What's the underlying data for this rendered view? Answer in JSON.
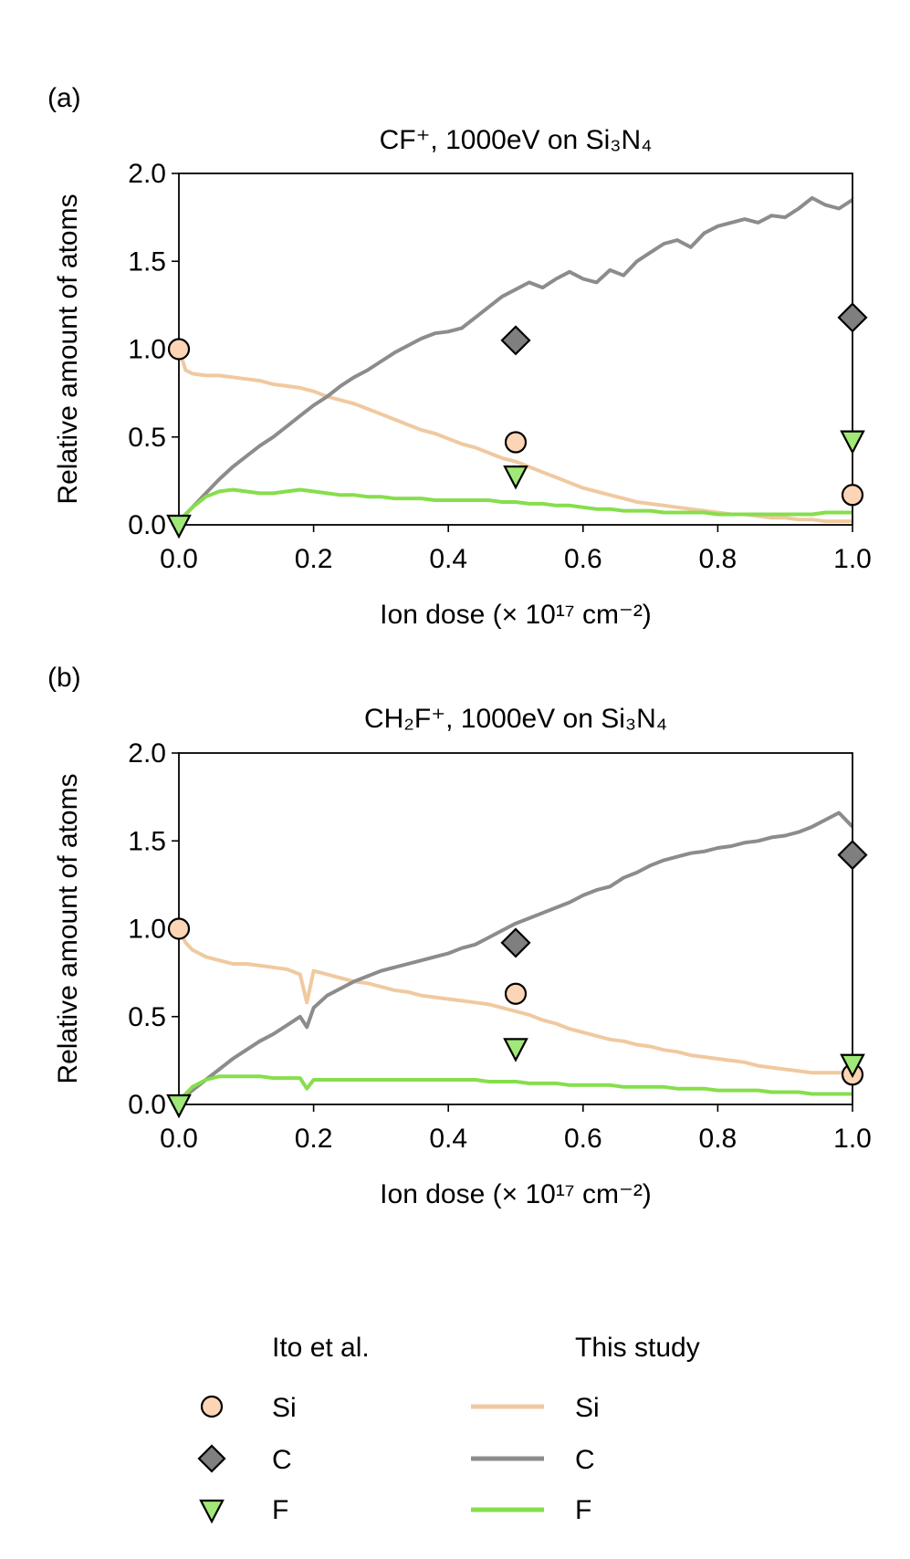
{
  "colors": {
    "si": "#f0c9a0",
    "c": "#8c8c8c",
    "f": "#86de4c",
    "si_marker": "#fbd5b5",
    "c_marker": "#7f7f7f",
    "f_marker": "#a0e878"
  },
  "legend": {
    "ito_heading": "Ito et al.",
    "study_heading": "This study",
    "ito_items": [
      "Si",
      "C",
      "F"
    ],
    "study_items": [
      "Si",
      "C",
      "F"
    ]
  },
  "chart_data": [
    {
      "type": "line",
      "panel_label": "(a)",
      "title": "CF⁺, 1000eV on Si₃N₄",
      "xlabel": "Ion dose (× 10¹⁷ cm⁻²)",
      "ylabel": "Relative amount of atoms",
      "xlim": [
        0.0,
        1.0
      ],
      "ylim": [
        0.0,
        2.0
      ],
      "xticks": [
        "0.0",
        "0.2",
        "0.4",
        "0.6",
        "0.8",
        "1.0"
      ],
      "yticks": [
        "0.0",
        "0.5",
        "1.0",
        "1.5",
        "2.0"
      ],
      "series": [
        {
          "name": "Si",
          "x": [
            0.0,
            0.01,
            0.02,
            0.04,
            0.06,
            0.08,
            0.1,
            0.12,
            0.14,
            0.16,
            0.18,
            0.2,
            0.22,
            0.24,
            0.26,
            0.28,
            0.3,
            0.32,
            0.34,
            0.36,
            0.38,
            0.4,
            0.42,
            0.44,
            0.46,
            0.48,
            0.5,
            0.52,
            0.54,
            0.56,
            0.58,
            0.6,
            0.62,
            0.64,
            0.66,
            0.68,
            0.7,
            0.72,
            0.74,
            0.76,
            0.78,
            0.8,
            0.82,
            0.84,
            0.86,
            0.88,
            0.9,
            0.92,
            0.94,
            0.96,
            0.98,
            1.0
          ],
          "y": [
            1.0,
            0.88,
            0.86,
            0.85,
            0.85,
            0.84,
            0.83,
            0.82,
            0.8,
            0.79,
            0.78,
            0.76,
            0.73,
            0.71,
            0.69,
            0.66,
            0.63,
            0.6,
            0.57,
            0.54,
            0.52,
            0.49,
            0.46,
            0.44,
            0.41,
            0.38,
            0.36,
            0.33,
            0.3,
            0.27,
            0.24,
            0.21,
            0.19,
            0.17,
            0.15,
            0.13,
            0.12,
            0.11,
            0.1,
            0.09,
            0.08,
            0.07,
            0.06,
            0.06,
            0.05,
            0.04,
            0.04,
            0.03,
            0.03,
            0.02,
            0.02,
            0.02
          ]
        },
        {
          "name": "C",
          "x": [
            0.0,
            0.02,
            0.04,
            0.06,
            0.08,
            0.1,
            0.12,
            0.14,
            0.16,
            0.18,
            0.2,
            0.22,
            0.24,
            0.26,
            0.28,
            0.3,
            0.32,
            0.34,
            0.36,
            0.38,
            0.4,
            0.42,
            0.44,
            0.46,
            0.48,
            0.5,
            0.52,
            0.54,
            0.56,
            0.58,
            0.6,
            0.62,
            0.64,
            0.66,
            0.68,
            0.7,
            0.72,
            0.74,
            0.76,
            0.78,
            0.8,
            0.82,
            0.84,
            0.86,
            0.88,
            0.9,
            0.92,
            0.94,
            0.96,
            0.98,
            1.0
          ],
          "y": [
            0.02,
            0.1,
            0.18,
            0.26,
            0.33,
            0.39,
            0.45,
            0.5,
            0.56,
            0.62,
            0.68,
            0.73,
            0.79,
            0.84,
            0.88,
            0.93,
            0.98,
            1.02,
            1.06,
            1.09,
            1.1,
            1.12,
            1.18,
            1.24,
            1.3,
            1.34,
            1.38,
            1.35,
            1.4,
            1.44,
            1.4,
            1.38,
            1.45,
            1.42,
            1.5,
            1.55,
            1.6,
            1.62,
            1.58,
            1.66,
            1.7,
            1.72,
            1.74,
            1.72,
            1.76,
            1.75,
            1.8,
            1.86,
            1.82,
            1.8,
            1.85
          ]
        },
        {
          "name": "F",
          "x": [
            0.0,
            0.02,
            0.04,
            0.06,
            0.08,
            0.1,
            0.12,
            0.14,
            0.16,
            0.18,
            0.2,
            0.22,
            0.24,
            0.26,
            0.28,
            0.3,
            0.32,
            0.34,
            0.36,
            0.38,
            0.4,
            0.42,
            0.44,
            0.46,
            0.48,
            0.5,
            0.52,
            0.54,
            0.56,
            0.58,
            0.6,
            0.62,
            0.64,
            0.66,
            0.68,
            0.7,
            0.72,
            0.74,
            0.76,
            0.78,
            0.8,
            0.82,
            0.84,
            0.86,
            0.88,
            0.9,
            0.92,
            0.94,
            0.96,
            0.98,
            1.0
          ],
          "y": [
            0.02,
            0.1,
            0.16,
            0.19,
            0.2,
            0.19,
            0.18,
            0.18,
            0.19,
            0.2,
            0.19,
            0.18,
            0.17,
            0.17,
            0.16,
            0.16,
            0.15,
            0.15,
            0.15,
            0.14,
            0.14,
            0.14,
            0.14,
            0.14,
            0.13,
            0.13,
            0.12,
            0.12,
            0.11,
            0.11,
            0.1,
            0.09,
            0.09,
            0.08,
            0.08,
            0.08,
            0.07,
            0.07,
            0.07,
            0.07,
            0.06,
            0.06,
            0.06,
            0.06,
            0.06,
            0.06,
            0.06,
            0.06,
            0.07,
            0.07,
            0.07
          ]
        }
      ],
      "reference_points": [
        {
          "name": "Si",
          "marker": "circle",
          "x": [
            0.0,
            0.5,
            1.0
          ],
          "y": [
            1.0,
            0.47,
            0.17
          ]
        },
        {
          "name": "C",
          "marker": "diamond",
          "x": [
            0.5,
            1.0
          ],
          "y": [
            1.05,
            1.18
          ]
        },
        {
          "name": "F",
          "marker": "triangle-down",
          "x": [
            0.0,
            0.5,
            1.0
          ],
          "y": [
            0.0,
            0.28,
            0.48
          ]
        }
      ]
    },
    {
      "type": "line",
      "panel_label": "(b)",
      "title": "CH₂F⁺, 1000eV on Si₃N₄",
      "xlabel": "Ion dose (× 10¹⁷ cm⁻²)",
      "ylabel": "Relative amount of atoms",
      "xlim": [
        0.0,
        1.0
      ],
      "ylim": [
        0.0,
        2.0
      ],
      "xticks": [
        "0.0",
        "0.2",
        "0.4",
        "0.6",
        "0.8",
        "1.0"
      ],
      "yticks": [
        "0.0",
        "0.5",
        "1.0",
        "1.5",
        "2.0"
      ],
      "series": [
        {
          "name": "Si",
          "x": [
            0.0,
            0.01,
            0.02,
            0.04,
            0.06,
            0.08,
            0.1,
            0.12,
            0.14,
            0.16,
            0.18,
            0.19,
            0.2,
            0.22,
            0.24,
            0.26,
            0.28,
            0.3,
            0.32,
            0.34,
            0.36,
            0.38,
            0.4,
            0.42,
            0.44,
            0.46,
            0.48,
            0.5,
            0.52,
            0.54,
            0.56,
            0.58,
            0.6,
            0.62,
            0.64,
            0.66,
            0.68,
            0.7,
            0.72,
            0.74,
            0.76,
            0.78,
            0.8,
            0.82,
            0.84,
            0.86,
            0.88,
            0.9,
            0.92,
            0.94,
            0.96,
            0.98,
            1.0
          ],
          "y": [
            1.0,
            0.92,
            0.88,
            0.84,
            0.82,
            0.8,
            0.8,
            0.79,
            0.78,
            0.77,
            0.74,
            0.58,
            0.76,
            0.74,
            0.72,
            0.7,
            0.69,
            0.67,
            0.65,
            0.64,
            0.62,
            0.61,
            0.6,
            0.59,
            0.58,
            0.57,
            0.55,
            0.53,
            0.51,
            0.48,
            0.46,
            0.43,
            0.41,
            0.39,
            0.37,
            0.36,
            0.34,
            0.33,
            0.31,
            0.3,
            0.28,
            0.27,
            0.26,
            0.25,
            0.24,
            0.22,
            0.21,
            0.2,
            0.19,
            0.18,
            0.18,
            0.18,
            0.18
          ]
        },
        {
          "name": "C",
          "x": [
            0.0,
            0.02,
            0.04,
            0.06,
            0.08,
            0.1,
            0.12,
            0.14,
            0.16,
            0.18,
            0.19,
            0.2,
            0.22,
            0.24,
            0.26,
            0.28,
            0.3,
            0.32,
            0.34,
            0.36,
            0.38,
            0.4,
            0.42,
            0.44,
            0.46,
            0.48,
            0.5,
            0.52,
            0.54,
            0.56,
            0.58,
            0.6,
            0.62,
            0.64,
            0.66,
            0.68,
            0.7,
            0.72,
            0.74,
            0.76,
            0.78,
            0.8,
            0.82,
            0.84,
            0.86,
            0.88,
            0.9,
            0.92,
            0.94,
            0.96,
            0.98,
            1.0
          ],
          "y": [
            0.02,
            0.08,
            0.14,
            0.2,
            0.26,
            0.31,
            0.36,
            0.4,
            0.45,
            0.5,
            0.44,
            0.55,
            0.62,
            0.66,
            0.7,
            0.73,
            0.76,
            0.78,
            0.8,
            0.82,
            0.84,
            0.86,
            0.89,
            0.91,
            0.95,
            0.99,
            1.03,
            1.06,
            1.09,
            1.12,
            1.15,
            1.19,
            1.22,
            1.24,
            1.29,
            1.32,
            1.36,
            1.39,
            1.41,
            1.43,
            1.44,
            1.46,
            1.47,
            1.49,
            1.5,
            1.52,
            1.53,
            1.55,
            1.58,
            1.62,
            1.66,
            1.58
          ]
        },
        {
          "name": "F",
          "x": [
            0.0,
            0.02,
            0.04,
            0.06,
            0.08,
            0.1,
            0.12,
            0.14,
            0.16,
            0.18,
            0.19,
            0.2,
            0.22,
            0.24,
            0.26,
            0.28,
            0.3,
            0.32,
            0.34,
            0.36,
            0.38,
            0.4,
            0.42,
            0.44,
            0.46,
            0.48,
            0.5,
            0.52,
            0.54,
            0.56,
            0.58,
            0.6,
            0.62,
            0.64,
            0.66,
            0.68,
            0.7,
            0.72,
            0.74,
            0.76,
            0.78,
            0.8,
            0.82,
            0.84,
            0.86,
            0.88,
            0.9,
            0.92,
            0.94,
            0.96,
            0.98,
            1.0
          ],
          "y": [
            0.02,
            0.1,
            0.14,
            0.16,
            0.16,
            0.16,
            0.16,
            0.15,
            0.15,
            0.15,
            0.09,
            0.14,
            0.14,
            0.14,
            0.14,
            0.14,
            0.14,
            0.14,
            0.14,
            0.14,
            0.14,
            0.14,
            0.14,
            0.14,
            0.13,
            0.13,
            0.13,
            0.12,
            0.12,
            0.12,
            0.11,
            0.11,
            0.11,
            0.11,
            0.1,
            0.1,
            0.1,
            0.1,
            0.09,
            0.09,
            0.09,
            0.08,
            0.08,
            0.08,
            0.08,
            0.07,
            0.07,
            0.07,
            0.06,
            0.06,
            0.06,
            0.06
          ]
        }
      ],
      "reference_points": [
        {
          "name": "Si",
          "marker": "circle",
          "x": [
            0.0,
            0.5,
            1.0
          ],
          "y": [
            1.0,
            0.63,
            0.17
          ]
        },
        {
          "name": "C",
          "marker": "diamond",
          "x": [
            1.0,
            0.5
          ],
          "y": [
            1.42,
            0.92
          ]
        },
        {
          "name": "F",
          "marker": "triangle-down",
          "x": [
            0.0,
            0.5,
            1.0
          ],
          "y": [
            0.0,
            0.32,
            0.23
          ]
        }
      ]
    }
  ]
}
